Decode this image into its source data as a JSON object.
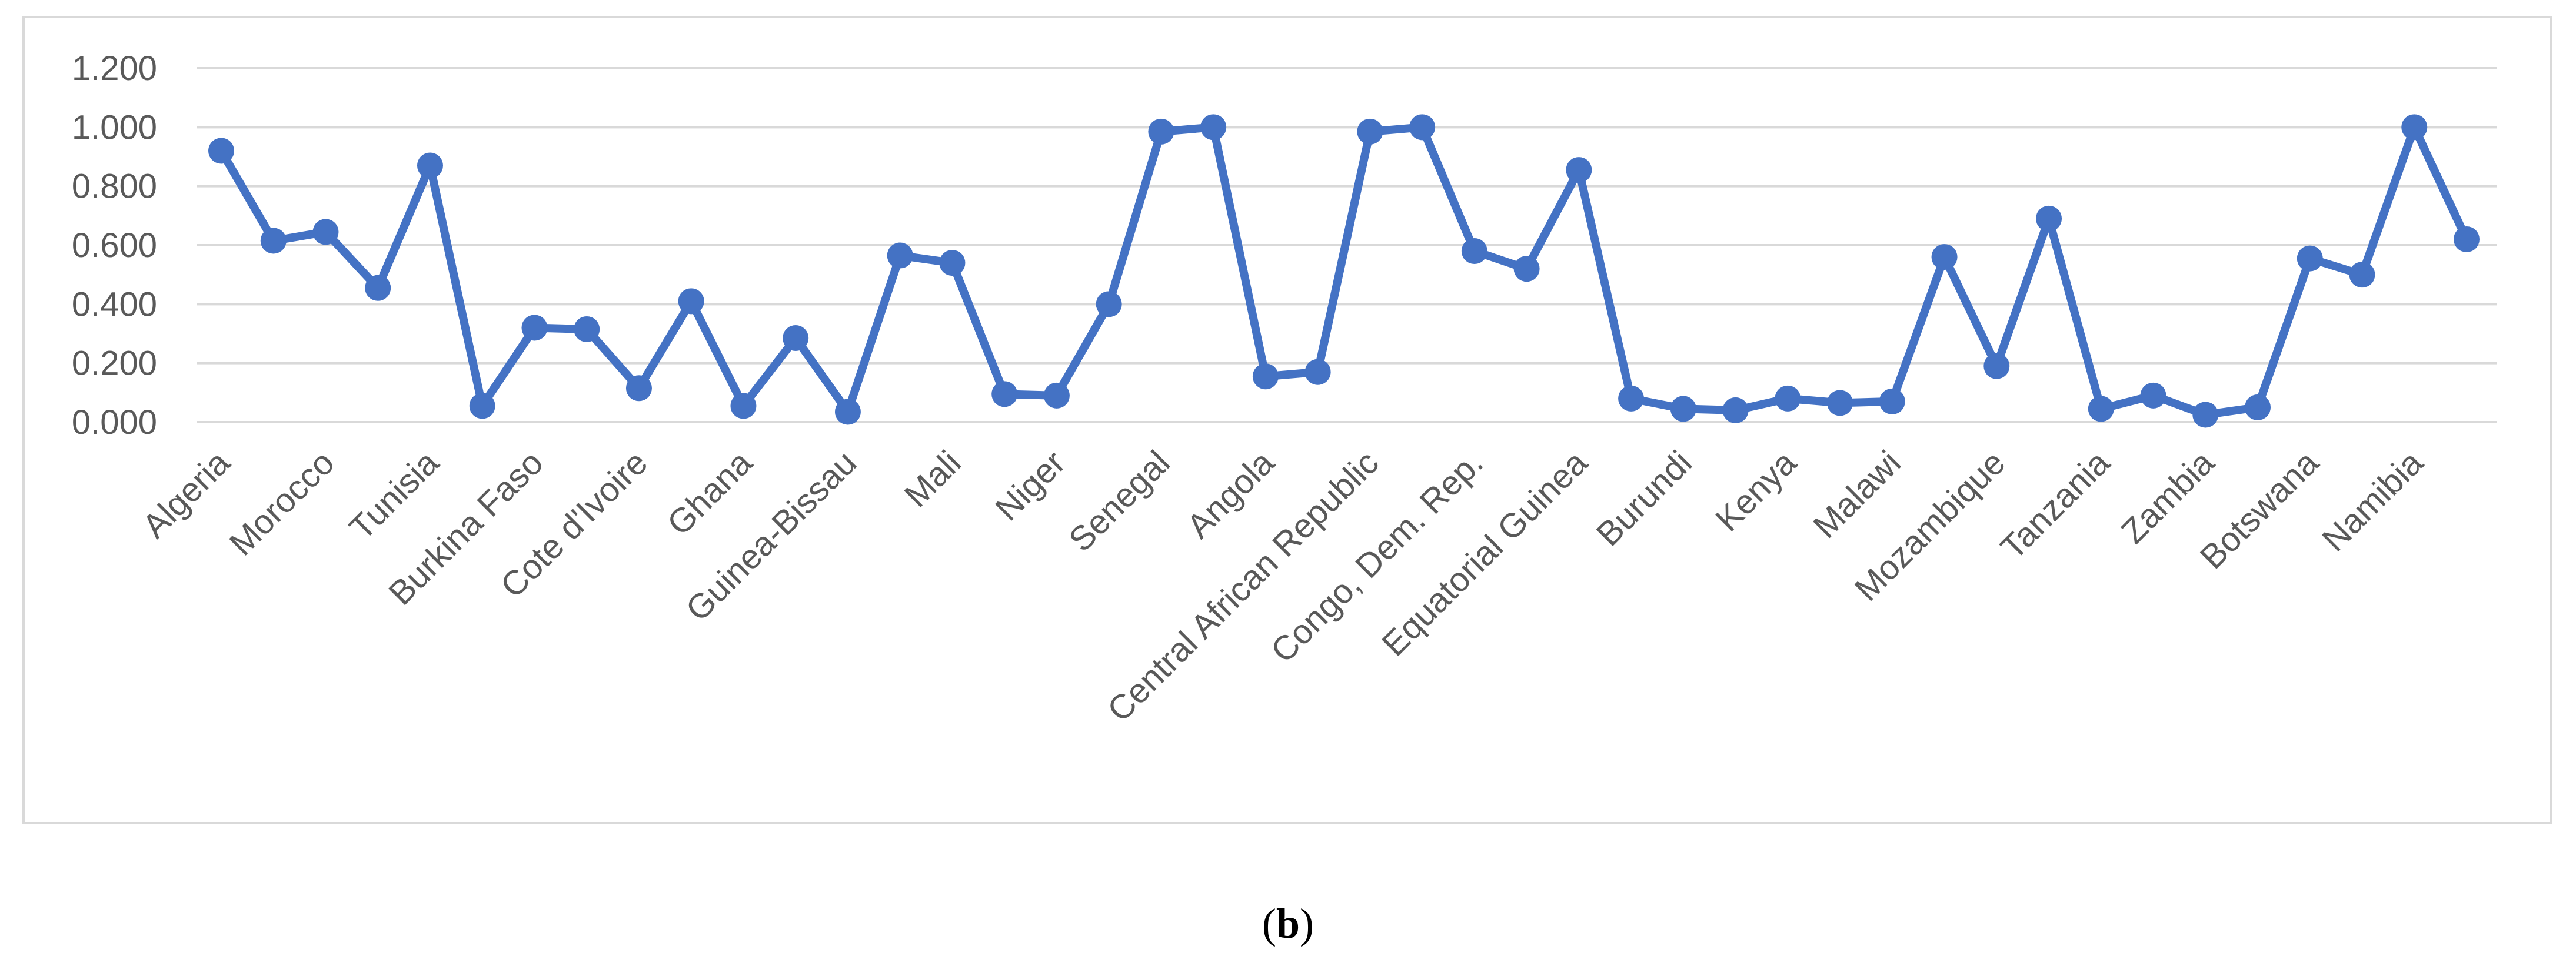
{
  "chart_data": {
    "type": "line",
    "title": "",
    "xlabel": "",
    "ylabel": "",
    "ylim": [
      0,
      1.2
    ],
    "yticks": [
      "0.000",
      "0.200",
      "0.400",
      "0.600",
      "0.800",
      "1.000",
      "1.200"
    ],
    "grid": true,
    "legend": "none",
    "line_color": "#4472c4",
    "categories": [
      "Algeria",
      "",
      "Morocco",
      "",
      "Tunisia",
      "",
      "Burkina Faso",
      "",
      "Cote d'Ivoire",
      "",
      "Ghana",
      "",
      "Guinea-Bissau",
      "",
      "Mali",
      "",
      "Niger",
      "",
      "Senegal",
      "",
      "Angola",
      "",
      "Central African Republic",
      "",
      "Congo, Dem. Rep.",
      "",
      "Equatorial Guinea",
      "",
      "Burundi",
      "",
      "Kenya",
      "",
      "Malawi",
      "",
      "Mozambique",
      "",
      "Tanzania",
      "",
      "Zambia",
      "",
      "Botswana",
      "",
      "Namibia",
      ""
    ],
    "series": [
      {
        "values": [
          0.92,
          0.615,
          0.645,
          0.455,
          0.87,
          0.055,
          0.32,
          0.315,
          0.115,
          0.41,
          0.055,
          0.285,
          0.035,
          0.565,
          0.54,
          0.095,
          0.09,
          0.4,
          0.985,
          1.0,
          0.155,
          0.17,
          0.985,
          1.0,
          0.58,
          0.52,
          0.855,
          0.08,
          0.045,
          0.04,
          0.08,
          0.065,
          0.07,
          0.56,
          0.19,
          0.69,
          0.045,
          0.09,
          0.025,
          0.05,
          0.555,
          0.5,
          1.0,
          0.62
        ]
      }
    ]
  },
  "caption": {
    "open": "(",
    "label": "b",
    "close": ")"
  }
}
